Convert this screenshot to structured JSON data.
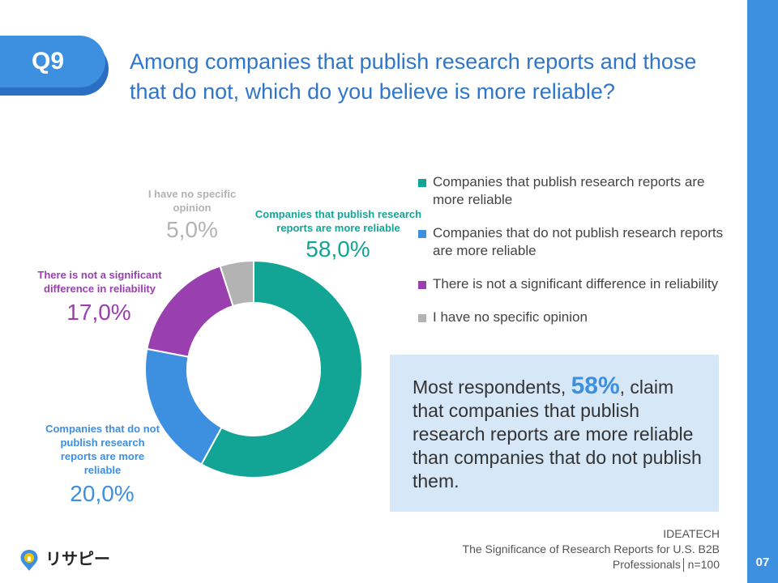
{
  "header": {
    "badge": "Q9",
    "question": "Among companies that publish research reports and those that do not, which do you believe is more reliable?"
  },
  "chart_data": {
    "type": "pie",
    "donut": true,
    "categories": [
      "Companies that publish research reports are more reliable",
      "Companies that do not publish research reports are more reliable",
      "There is not a significant difference in reliability",
      "I have no specific opinion"
    ],
    "values": [
      58.0,
      20.0,
      17.0,
      5.0
    ],
    "value_labels": [
      "58,0%",
      "20,0%",
      "17,0%",
      "5,0%"
    ],
    "slice_labels": [
      "Companies that publish research reports are more reliable",
      "Companies that do not publish research reports are more reliable",
      "There is not a significant difference in reliability",
      "I have no specific opinion"
    ],
    "colors": [
      "#12a596",
      "#3d8fe0",
      "#9a3fb0",
      "#b3b3b3"
    ],
    "legend_placement": "right"
  },
  "callout": {
    "before": "Most respondents, ",
    "highlight": "58%",
    "after": ", claim that companies that publish research reports are more reliable than companies that do not publish them."
  },
  "source": {
    "line1": "IDEATECH",
    "line2": "The Significance of Research Reports for U.S. B2B",
    "line3": "Professionals│n=100"
  },
  "logo": {
    "text": "リサピー",
    "icon": "lightbulb-pin-icon"
  },
  "page": {
    "number": "07"
  }
}
